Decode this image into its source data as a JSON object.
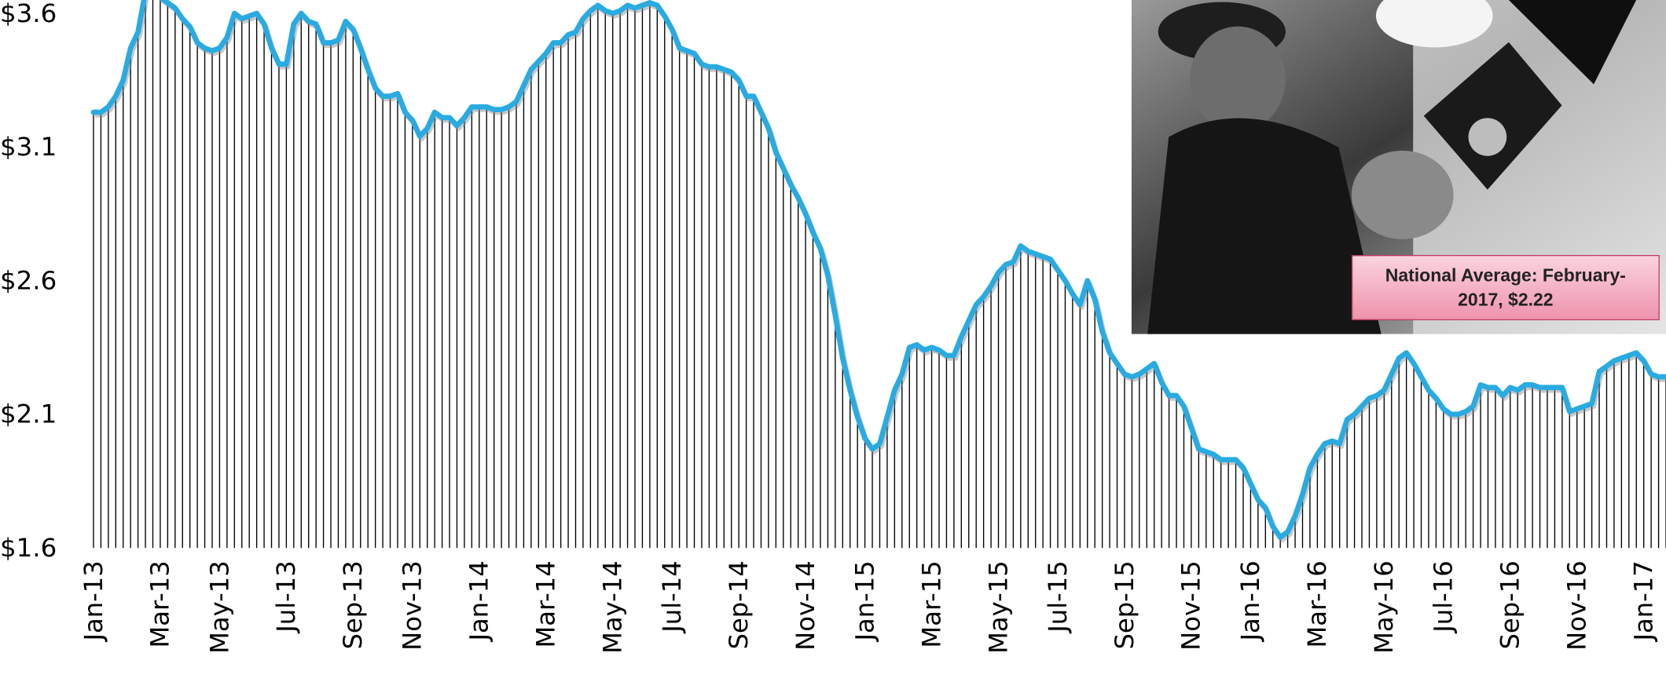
{
  "chart_data": {
    "type": "line",
    "annotation": "National Average: February-2017, $2.22",
    "categories": [
      "Jan-13",
      null,
      null,
      null,
      null,
      null,
      null,
      null,
      null,
      "Mar-13",
      null,
      null,
      null,
      null,
      null,
      null,
      null,
      "May-13",
      null,
      null,
      null,
      null,
      null,
      null,
      null,
      null,
      "Jul-13",
      null,
      null,
      null,
      null,
      null,
      null,
      null,
      null,
      "Sep-13",
      null,
      null,
      null,
      null,
      null,
      null,
      null,
      "Nov-13",
      null,
      null,
      null,
      null,
      null,
      null,
      null,
      null,
      "Jan-14",
      null,
      null,
      null,
      null,
      null,
      null,
      null,
      null,
      "Mar-14",
      null,
      null,
      null,
      null,
      null,
      null,
      null,
      null,
      "May-14",
      null,
      null,
      null,
      null,
      null,
      null,
      null,
      "Jul-14",
      null,
      null,
      null,
      null,
      null,
      null,
      null,
      null,
      "Sep-14",
      null,
      null,
      null,
      null,
      null,
      null,
      null,
      null,
      "Nov-14",
      null,
      null,
      null,
      null,
      null,
      null,
      null,
      "Jan-15",
      null,
      null,
      null,
      null,
      null,
      null,
      null,
      null,
      "Mar-15",
      null,
      null,
      null,
      null,
      null,
      null,
      null,
      null,
      "May-15",
      null,
      null,
      null,
      null,
      null,
      null,
      null,
      "Jul-15",
      null,
      null,
      null,
      null,
      null,
      null,
      null,
      null,
      "Sep-15",
      null,
      null,
      null,
      null,
      null,
      null,
      null,
      null,
      "Nov-15",
      null,
      null,
      null,
      null,
      null,
      null,
      null,
      "Jan-16",
      null,
      null,
      null,
      null,
      null,
      null,
      null,
      null,
      "Mar-16",
      null,
      null,
      null,
      null,
      null,
      null,
      null,
      null,
      "May-16",
      null,
      null,
      null,
      null,
      null,
      null,
      null,
      "Jul-16",
      null,
      null,
      null,
      null,
      null,
      null,
      null,
      null,
      "Sep-16",
      null,
      null,
      null,
      null,
      null,
      null,
      null,
      null,
      "Nov-16",
      null,
      null,
      null,
      null,
      null,
      null,
      null,
      null,
      "Jan-17",
      null,
      null,
      null
    ],
    "values": [
      3.23,
      3.23,
      3.25,
      3.29,
      3.35,
      3.47,
      3.53,
      3.68,
      3.72,
      3.66,
      3.64,
      3.62,
      3.58,
      3.55,
      3.49,
      3.47,
      3.46,
      3.47,
      3.51,
      3.6,
      3.58,
      3.59,
      3.6,
      3.56,
      3.47,
      3.41,
      3.41,
      3.56,
      3.6,
      3.57,
      3.56,
      3.49,
      3.49,
      3.5,
      3.57,
      3.54,
      3.47,
      3.39,
      3.32,
      3.29,
      3.29,
      3.3,
      3.23,
      3.2,
      3.14,
      3.17,
      3.23,
      3.21,
      3.21,
      3.18,
      3.21,
      3.25,
      3.25,
      3.25,
      3.24,
      3.24,
      3.25,
      3.27,
      3.33,
      3.39,
      3.42,
      3.45,
      3.49,
      3.49,
      3.52,
      3.53,
      3.58,
      3.61,
      3.63,
      3.61,
      3.6,
      3.61,
      3.63,
      3.62,
      3.63,
      3.64,
      3.63,
      3.59,
      3.54,
      3.47,
      3.46,
      3.45,
      3.41,
      3.4,
      3.4,
      3.39,
      3.38,
      3.35,
      3.29,
      3.29,
      3.23,
      3.17,
      3.08,
      3.02,
      2.96,
      2.91,
      2.85,
      2.78,
      2.72,
      2.62,
      2.47,
      2.31,
      2.19,
      2.09,
      2.01,
      1.97,
      1.99,
      2.09,
      2.19,
      2.25,
      2.35,
      2.36,
      2.34,
      2.35,
      2.34,
      2.32,
      2.32,
      2.39,
      2.45,
      2.51,
      2.54,
      2.58,
      2.63,
      2.66,
      2.67,
      2.73,
      2.71,
      2.7,
      2.69,
      2.68,
      2.64,
      2.6,
      2.55,
      2.51,
      2.6,
      2.53,
      2.41,
      2.33,
      2.29,
      2.25,
      2.24,
      2.25,
      2.27,
      2.29,
      2.22,
      2.17,
      2.17,
      2.13,
      2.05,
      1.97,
      1.96,
      1.95,
      1.93,
      1.93,
      1.93,
      1.9,
      1.84,
      1.78,
      1.75,
      1.68,
      1.64,
      1.66,
      1.72,
      1.8,
      1.9,
      1.95,
      1.99,
      2.0,
      1.99,
      2.08,
      2.1,
      2.13,
      2.16,
      2.17,
      2.19,
      2.25,
      2.31,
      2.33,
      2.29,
      2.24,
      2.19,
      2.16,
      2.12,
      2.1,
      2.1,
      2.11,
      2.13,
      2.21,
      2.2,
      2.2,
      2.17,
      2.2,
      2.19,
      2.21,
      2.21,
      2.2,
      2.2,
      2.2,
      2.2,
      2.11,
      2.12,
      2.13,
      2.14,
      2.26,
      2.28,
      2.3,
      2.31,
      2.32,
      2.33,
      2.3,
      2.25,
      2.24,
      2.24
    ],
    "color": "#29abe2",
    "drop_lines": true,
    "drop_line_color": "#000000",
    "ylim": [
      1.6,
      3.65
    ],
    "yticks": [
      {
        "value": 1.6,
        "label": "$1.6"
      },
      {
        "value": 2.1,
        "label": "$2.1"
      },
      {
        "value": 2.6,
        "label": "$2.6"
      },
      {
        "value": 3.1,
        "label": "$3.1"
      },
      {
        "value": 3.6,
        "label": "$3.6"
      }
    ]
  }
}
